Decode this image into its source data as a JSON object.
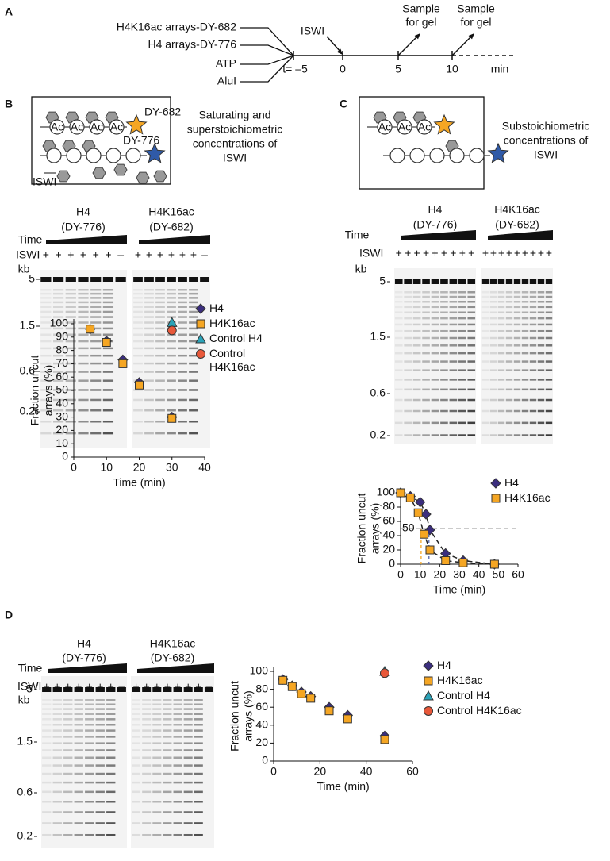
{
  "panel_labels": [
    "A",
    "B",
    "C",
    "D"
  ],
  "timeline": {
    "inputs": [
      "H4K16ac arrays-DY-682",
      "H4 arrays-DY-776",
      "ATP",
      "AluI"
    ],
    "start": "t= –5",
    "times": [
      "0",
      "5",
      "10"
    ],
    "unit": "min",
    "enzyme": "ISWI",
    "samples": [
      [
        "Sample",
        "for gel"
      ],
      [
        "Sample",
        "for gel"
      ]
    ]
  },
  "schematics": [
    {
      "dyes": [
        "DY-682",
        "DY-776"
      ],
      "ac": "Ac",
      "enzyme": "ISWI",
      "description": [
        "Saturating and",
        "superstoichiometric",
        "concentrations of",
        "ISWI"
      ]
    },
    {
      "dyes": [],
      "ac": "Ac",
      "description": [
        "Substoichiometric",
        "concentrations of",
        "ISWI"
      ]
    }
  ],
  "gels": [
    {
      "groups": [
        {
          "name": "H4",
          "dye": "(DY-776)",
          "color": "#3a5ba8"
        },
        {
          "name": "H4K16ac",
          "dye": "(DY-682)",
          "color": "#f0a030"
        }
      ],
      "time": "Time",
      "enzyme": "ISWI",
      "kb": "kb",
      "markers": [
        "5",
        "1.5",
        "0.6",
        "0.2"
      ],
      "lanes": [
        "+",
        "+",
        "+",
        "+",
        "+",
        "+",
        "–"
      ]
    },
    {
      "groups": [
        {
          "name": "H4",
          "dye": "(DY-776)",
          "color": "#3a5ba8"
        },
        {
          "name": "H4K16ac",
          "dye": "(DY-682)",
          "color": "#f0a030"
        }
      ],
      "time": "Time",
      "enzyme": "ISWI",
      "kb": "kb",
      "markers": [
        "5",
        "1.5",
        "0.6",
        "0.2"
      ],
      "lanes": [
        "+",
        "+",
        "+",
        "+",
        "+",
        "+",
        "+",
        "+",
        "+"
      ]
    },
    {
      "groups": [
        {
          "name": "H4",
          "dye": "(DY-776)",
          "color": "#3a5ba8"
        },
        {
          "name": "H4K16ac",
          "dye": "(DY-682)",
          "color": "#f0a030"
        }
      ],
      "time": "Time",
      "enzyme": "ISWI",
      "kb": "kb",
      "markers": [
        "5",
        "1.5",
        "0.6",
        "0.2"
      ],
      "lanes": [
        "+",
        "+",
        "+",
        "+",
        "+",
        "+",
        "+",
        "–"
      ]
    }
  ],
  "chart_data": [
    {
      "type": "scatter",
      "x_label": "Time (min)",
      "y_label": [
        "Fraction uncut",
        "arrays (%)"
      ],
      "xlim": [
        0,
        40
      ],
      "xticks": [
        0,
        10,
        20,
        30,
        40
      ],
      "ylim": [
        0,
        100
      ],
      "yticks": [
        0,
        10,
        20,
        30,
        40,
        50,
        60,
        70,
        80,
        90,
        100
      ],
      "series": [
        {
          "name": "H4",
          "color": "#3b2e7e",
          "marker": "diamond",
          "x": [
            5,
            10,
            15,
            20,
            30
          ],
          "values": [
            96,
            87,
            73,
            56,
            30
          ]
        },
        {
          "name": "H4K16ac",
          "color": "#f5a623",
          "marker": "square",
          "x": [
            5,
            10,
            15,
            20,
            30
          ],
          "values": [
            96,
            86,
            70,
            54,
            29
          ]
        },
        {
          "name": "Control H4",
          "color": "#2ba3b8",
          "marker": "triangle",
          "x": [
            30
          ],
          "values": [
            101
          ]
        },
        {
          "name": "Control H4K16ac",
          "color": "#e8583a",
          "marker": "circle",
          "x": [
            30
          ],
          "values": [
            95
          ]
        }
      ]
    },
    {
      "type": "scatter",
      "x_label": "Time (min)",
      "y_label": [
        "Fraction uncut",
        "arrays (%)"
      ],
      "xlim": [
        0,
        60
      ],
      "xticks": [
        0,
        10,
        20,
        30,
        40,
        50,
        60
      ],
      "ylim": [
        0,
        100
      ],
      "yticks": [
        0,
        20,
        40,
        60,
        80,
        100
      ],
      "fit_lines": true,
      "reference_line": {
        "value": 50,
        "label": "50",
        "color": "#aaaaaa"
      },
      "half_times": [
        {
          "x": 10.5,
          "color": "#f5a623"
        },
        {
          "x": 14.5,
          "color": "#5566aa"
        }
      ],
      "series": [
        {
          "name": "H4",
          "color": "#3b2e7e",
          "marker": "diamond",
          "x": [
            0,
            5,
            10,
            13,
            15,
            23,
            32,
            48
          ],
          "values": [
            100,
            95,
            87,
            70,
            48,
            15,
            5,
            0
          ]
        },
        {
          "name": "H4K16ac",
          "color": "#f5a623",
          "marker": "square",
          "x": [
            0,
            5,
            9,
            12,
            15,
            23,
            32,
            48
          ],
          "values": [
            100,
            93,
            72,
            42,
            20,
            5,
            2,
            0
          ]
        }
      ]
    },
    {
      "type": "scatter",
      "x_label": "Time (min)",
      "y_label": [
        "Fraction uncut",
        "arrays (%)"
      ],
      "xlim": [
        0,
        60
      ],
      "xticks": [
        0,
        20,
        40,
        60
      ],
      "ylim": [
        0,
        100
      ],
      "yticks": [
        0,
        20,
        40,
        60,
        80,
        100
      ],
      "series": [
        {
          "name": "H4",
          "color": "#3b2e7e",
          "marker": "diamond",
          "x": [
            4,
            8,
            12,
            16,
            24,
            32,
            48
          ],
          "values": [
            91,
            84,
            77,
            72,
            60,
            51,
            28
          ]
        },
        {
          "name": "H4K16ac",
          "color": "#f5a623",
          "marker": "square",
          "x": [
            4,
            8,
            12,
            16,
            24,
            32,
            48
          ],
          "values": [
            90,
            83,
            75,
            70,
            56,
            47,
            24
          ]
        },
        {
          "name": "Control H4",
          "color": "#2ba3b8",
          "marker": "triangle",
          "x": [
            48
          ],
          "values": [
            100
          ]
        },
        {
          "name": "Control H4K16ac",
          "color": "#e8583a",
          "marker": "circle",
          "x": [
            48
          ],
          "values": [
            98
          ]
        }
      ]
    }
  ]
}
